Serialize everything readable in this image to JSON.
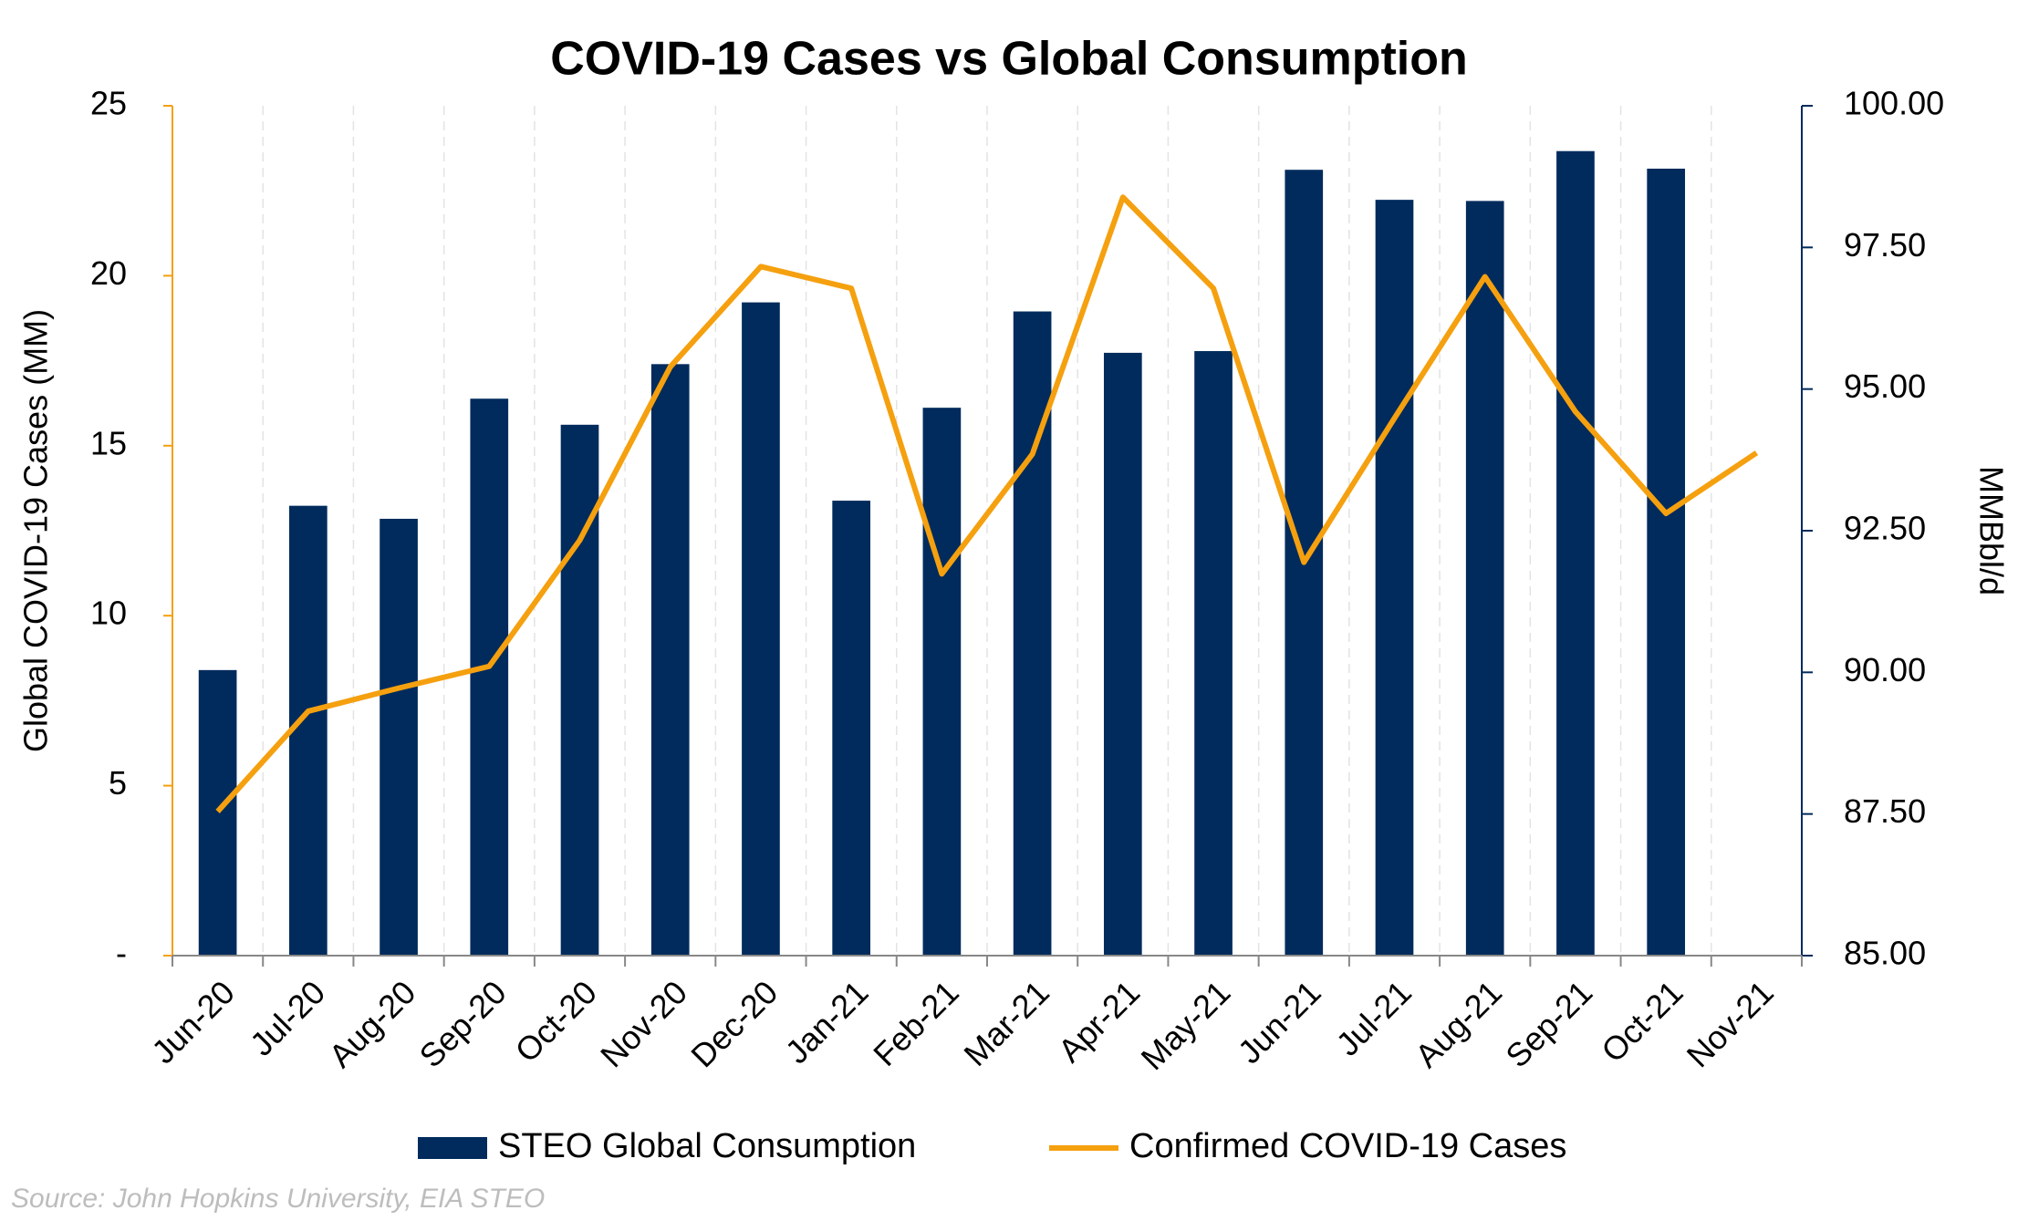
{
  "chart_data": {
    "type": "bar-line",
    "title": "COVID-19 Cases vs Global Consumption",
    "ylabel": "Global COVID-19 Cases (MM)",
    "y2label": "MMBbl/d",
    "source": "Source: John Hopkins University, EIA STEO",
    "categories": [
      "Jun-20",
      "Jul-20",
      "Aug-20",
      "Sep-20",
      "Oct-20",
      "Nov-20",
      "Dec-20",
      "Jan-21",
      "Feb-21",
      "Mar-21",
      "Apr-21",
      "May-21",
      "Jun-21",
      "Jul-21",
      "Aug-21",
      "Sep-21",
      "Oct-21",
      "Nov-21"
    ],
    "series": [
      {
        "name": "STEO Global Consumption",
        "type": "bar",
        "axis": "y2",
        "color": "#002b5c",
        "values": [
          90.04,
          92.94,
          92.71,
          94.83,
          94.37,
          95.44,
          96.53,
          93.03,
          94.67,
          96.37,
          95.64,
          95.67,
          98.87,
          98.34,
          98.32,
          99.2,
          98.89,
          null
        ]
      },
      {
        "name": "Confirmed COVID-19 Cases",
        "type": "line",
        "axis": "y",
        "color": "#f5a00f",
        "values": [
          4.24,
          7.19,
          7.87,
          8.51,
          12.22,
          17.32,
          20.27,
          19.63,
          11.23,
          14.75,
          22.31,
          19.63,
          11.57,
          15.81,
          19.97,
          16.0,
          13.01,
          14.79
        ]
      }
    ],
    "ylim": [
      0,
      25
    ],
    "yticks": [
      {
        "value": 0,
        "label": "-"
      },
      5,
      10,
      15,
      20,
      25
    ],
    "y2lim": [
      85,
      100
    ],
    "y2ticks": [
      {
        "value": 85,
        "label": "85.00"
      },
      {
        "value": 87.5,
        "label": "87.50"
      },
      {
        "value": 90,
        "label": "90.00"
      },
      {
        "value": 92.5,
        "label": "92.50"
      },
      {
        "value": 95,
        "label": "95.00"
      },
      {
        "value": 97.5,
        "label": "97.50"
      },
      {
        "value": 100,
        "label": "100.00"
      }
    ],
    "grid": "x",
    "legend": "bottom"
  }
}
